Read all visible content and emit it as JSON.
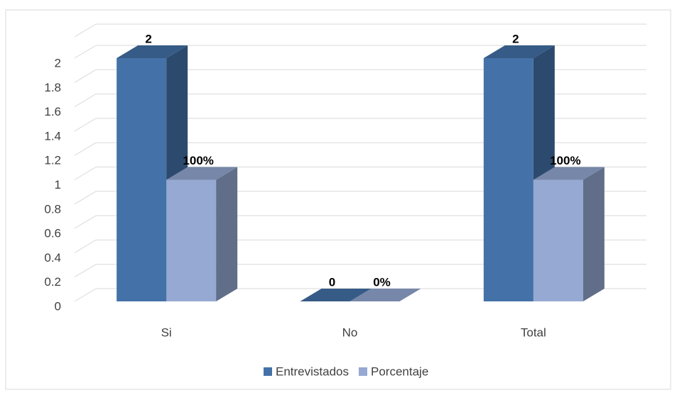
{
  "chart_data": {
    "type": "bar3d",
    "categories": [
      "Si",
      "No",
      "Total"
    ],
    "series": [
      {
        "name": "Entrevistados",
        "color": "#4472a8",
        "values": [
          2,
          0,
          2
        ]
      },
      {
        "name": "Porcentaje",
        "color": "#95a9d3",
        "values": [
          1,
          0,
          1
        ],
        "value_labels": [
          "100%",
          "0%",
          "100%"
        ]
      }
    ],
    "ylim": [
      0,
      2
    ],
    "yticks": [
      0,
      0.2,
      0.4,
      0.6,
      0.8,
      1,
      1.2,
      1.4,
      1.6,
      1.8,
      2
    ],
    "grid": true,
    "legend": "bottom"
  }
}
